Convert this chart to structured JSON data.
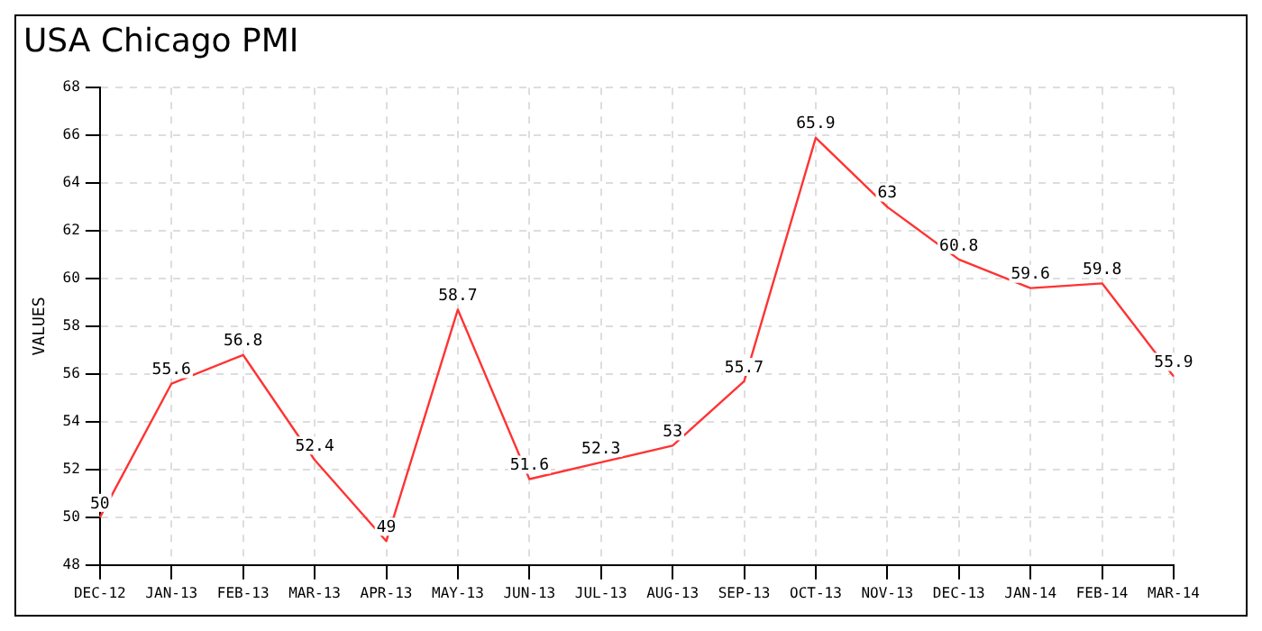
{
  "chart_data": {
    "type": "line",
    "title": "USA Chicago PMI",
    "ylabel": "VALUES",
    "categories": [
      "DEC-12",
      "JAN-13",
      "FEB-13",
      "MAR-13",
      "APR-13",
      "MAY-13",
      "JUN-13",
      "JUL-13",
      "AUG-13",
      "SEP-13",
      "OCT-13",
      "NOV-13",
      "DEC-13",
      "JAN-14",
      "FEB-14",
      "MAR-14"
    ],
    "series": [
      {
        "color": "#ff3333",
        "values": [
          50,
          55.6,
          56.8,
          52.4,
          49,
          58.7,
          51.6,
          52.3,
          53,
          55.7,
          65.9,
          63,
          60.8,
          59.6,
          59.8,
          55.9
        ]
      }
    ],
    "ylim": [
      48,
      68
    ],
    "yticks": [
      48,
      50,
      52,
      54,
      56,
      58,
      60,
      62,
      64,
      66,
      68
    ],
    "grid": true,
    "data_labels": true,
    "marker": "none",
    "line_style": "solid",
    "legend": false
  }
}
